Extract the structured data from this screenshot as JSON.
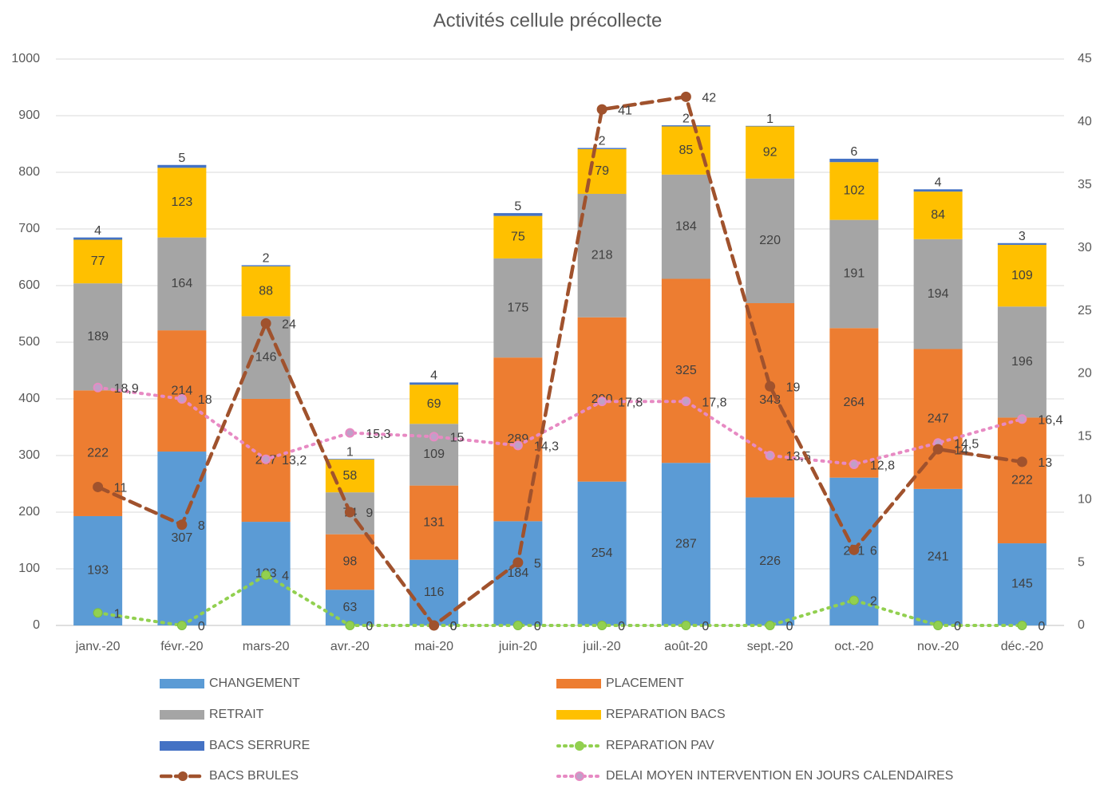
{
  "chart_data": {
    "type": "bar",
    "title": "Activités cellule précollecte",
    "categories": [
      "janv.-20",
      "févr.-20",
      "mars-20",
      "avr.-20",
      "mai-20",
      "juin-20",
      "juil.-20",
      "août-20",
      "sept.-20",
      "oct.-20",
      "nov.-20",
      "déc.-20"
    ],
    "y_left": {
      "min": 0,
      "max": 1000,
      "ticks": [
        "0",
        "100",
        "200",
        "300",
        "400",
        "500",
        "600",
        "700",
        "800",
        "900",
        "1000"
      ]
    },
    "y_right": {
      "min": 0,
      "max": 45,
      "ticks": [
        "0",
        "5",
        "10",
        "15",
        "20",
        "25",
        "30",
        "35",
        "40",
        "45"
      ]
    },
    "grid": true,
    "legend_position": "bottom",
    "stacked_bars": [
      {
        "name": "CHANGEMENT",
        "color": "#5b9bd5",
        "values": [
          193,
          307,
          183,
          63,
          116,
          184,
          254,
          287,
          226,
          261,
          241,
          145
        ],
        "labels": [
          "193",
          "307",
          "183",
          "63",
          "116",
          "184",
          "254",
          "287",
          "226",
          "261",
          "241",
          "145"
        ]
      },
      {
        "name": "PLACEMENT",
        "color": "#ed7d31",
        "values": [
          222,
          214,
          217,
          98,
          131,
          289,
          290,
          325,
          343,
          264,
          247,
          222
        ],
        "labels": [
          "222",
          "214",
          "217",
          "98",
          "131",
          "289",
          "290",
          "325",
          "343",
          "264",
          "247",
          "222"
        ]
      },
      {
        "name": "RETRAIT",
        "color": "#a5a5a5",
        "values": [
          189,
          164,
          146,
          74,
          109,
          175,
          218,
          184,
          220,
          191,
          194,
          196
        ],
        "labels": [
          "189",
          "164",
          "146",
          "74",
          "109",
          "175",
          "218",
          "184",
          "220",
          "191",
          "194",
          "196"
        ]
      },
      {
        "name": "REPARATION BACS",
        "color": "#ffc000",
        "values": [
          77,
          123,
          88,
          58,
          69,
          75,
          79,
          85,
          92,
          102,
          84,
          109
        ],
        "labels": [
          "77",
          "123",
          "88",
          "58",
          "69",
          "75",
          "79",
          "85",
          "92",
          "102",
          "84",
          "109"
        ]
      },
      {
        "name": "BACS SERRURE",
        "color": "#4472c4",
        "values": [
          4,
          5,
          2,
          1,
          4,
          5,
          2,
          2,
          1,
          6,
          4,
          3
        ],
        "labels": [
          "4",
          "5",
          "2",
          "1",
          "4",
          "5",
          "2",
          "2",
          "1",
          "6",
          "4",
          "3"
        ]
      }
    ],
    "lines": [
      {
        "name": "REPARATION PAV",
        "color": "#92d050",
        "axis": "right",
        "style": "dotted",
        "values": [
          1,
          0,
          4,
          0,
          0,
          0,
          0,
          0,
          0,
          2,
          0,
          0
        ],
        "labels": [
          "1",
          "0",
          "4",
          "0",
          "0",
          "0",
          "0",
          "0",
          "0",
          "2",
          "0",
          "0"
        ]
      },
      {
        "name": "BACS BRULES",
        "color": "#a0522d",
        "axis": "right",
        "style": "dashed",
        "values": [
          11,
          8,
          24,
          9,
          0,
          5,
          41,
          42,
          19,
          6,
          14,
          13
        ],
        "labels": [
          "11",
          "8",
          "24",
          "9",
          "0",
          "5",
          "41",
          "42",
          "19",
          "6",
          "14",
          "13"
        ]
      },
      {
        "name": "DELAI MOYEN INTERVENTION EN JOURS CALENDAIRES",
        "color": "#e78ac3",
        "axis": "right",
        "style": "dotted",
        "values": [
          18.9,
          18,
          13.2,
          15.3,
          15,
          14.3,
          17.8,
          17.8,
          13.5,
          12.8,
          14.5,
          16.4
        ],
        "labels": [
          "18,9",
          "18",
          "13,2",
          "15,3",
          "15",
          "14,3",
          "17,8",
          "17,8",
          "13,5",
          "12,8",
          "14,5",
          "16,4"
        ]
      }
    ],
    "legend": [
      "CHANGEMENT",
      "PLACEMENT",
      "RETRAIT",
      "REPARATION BACS",
      "BACS SERRURE",
      "REPARATION PAV",
      "BACS BRULES",
      "DELAI MOYEN INTERVENTION EN JOURS CALENDAIRES"
    ]
  }
}
